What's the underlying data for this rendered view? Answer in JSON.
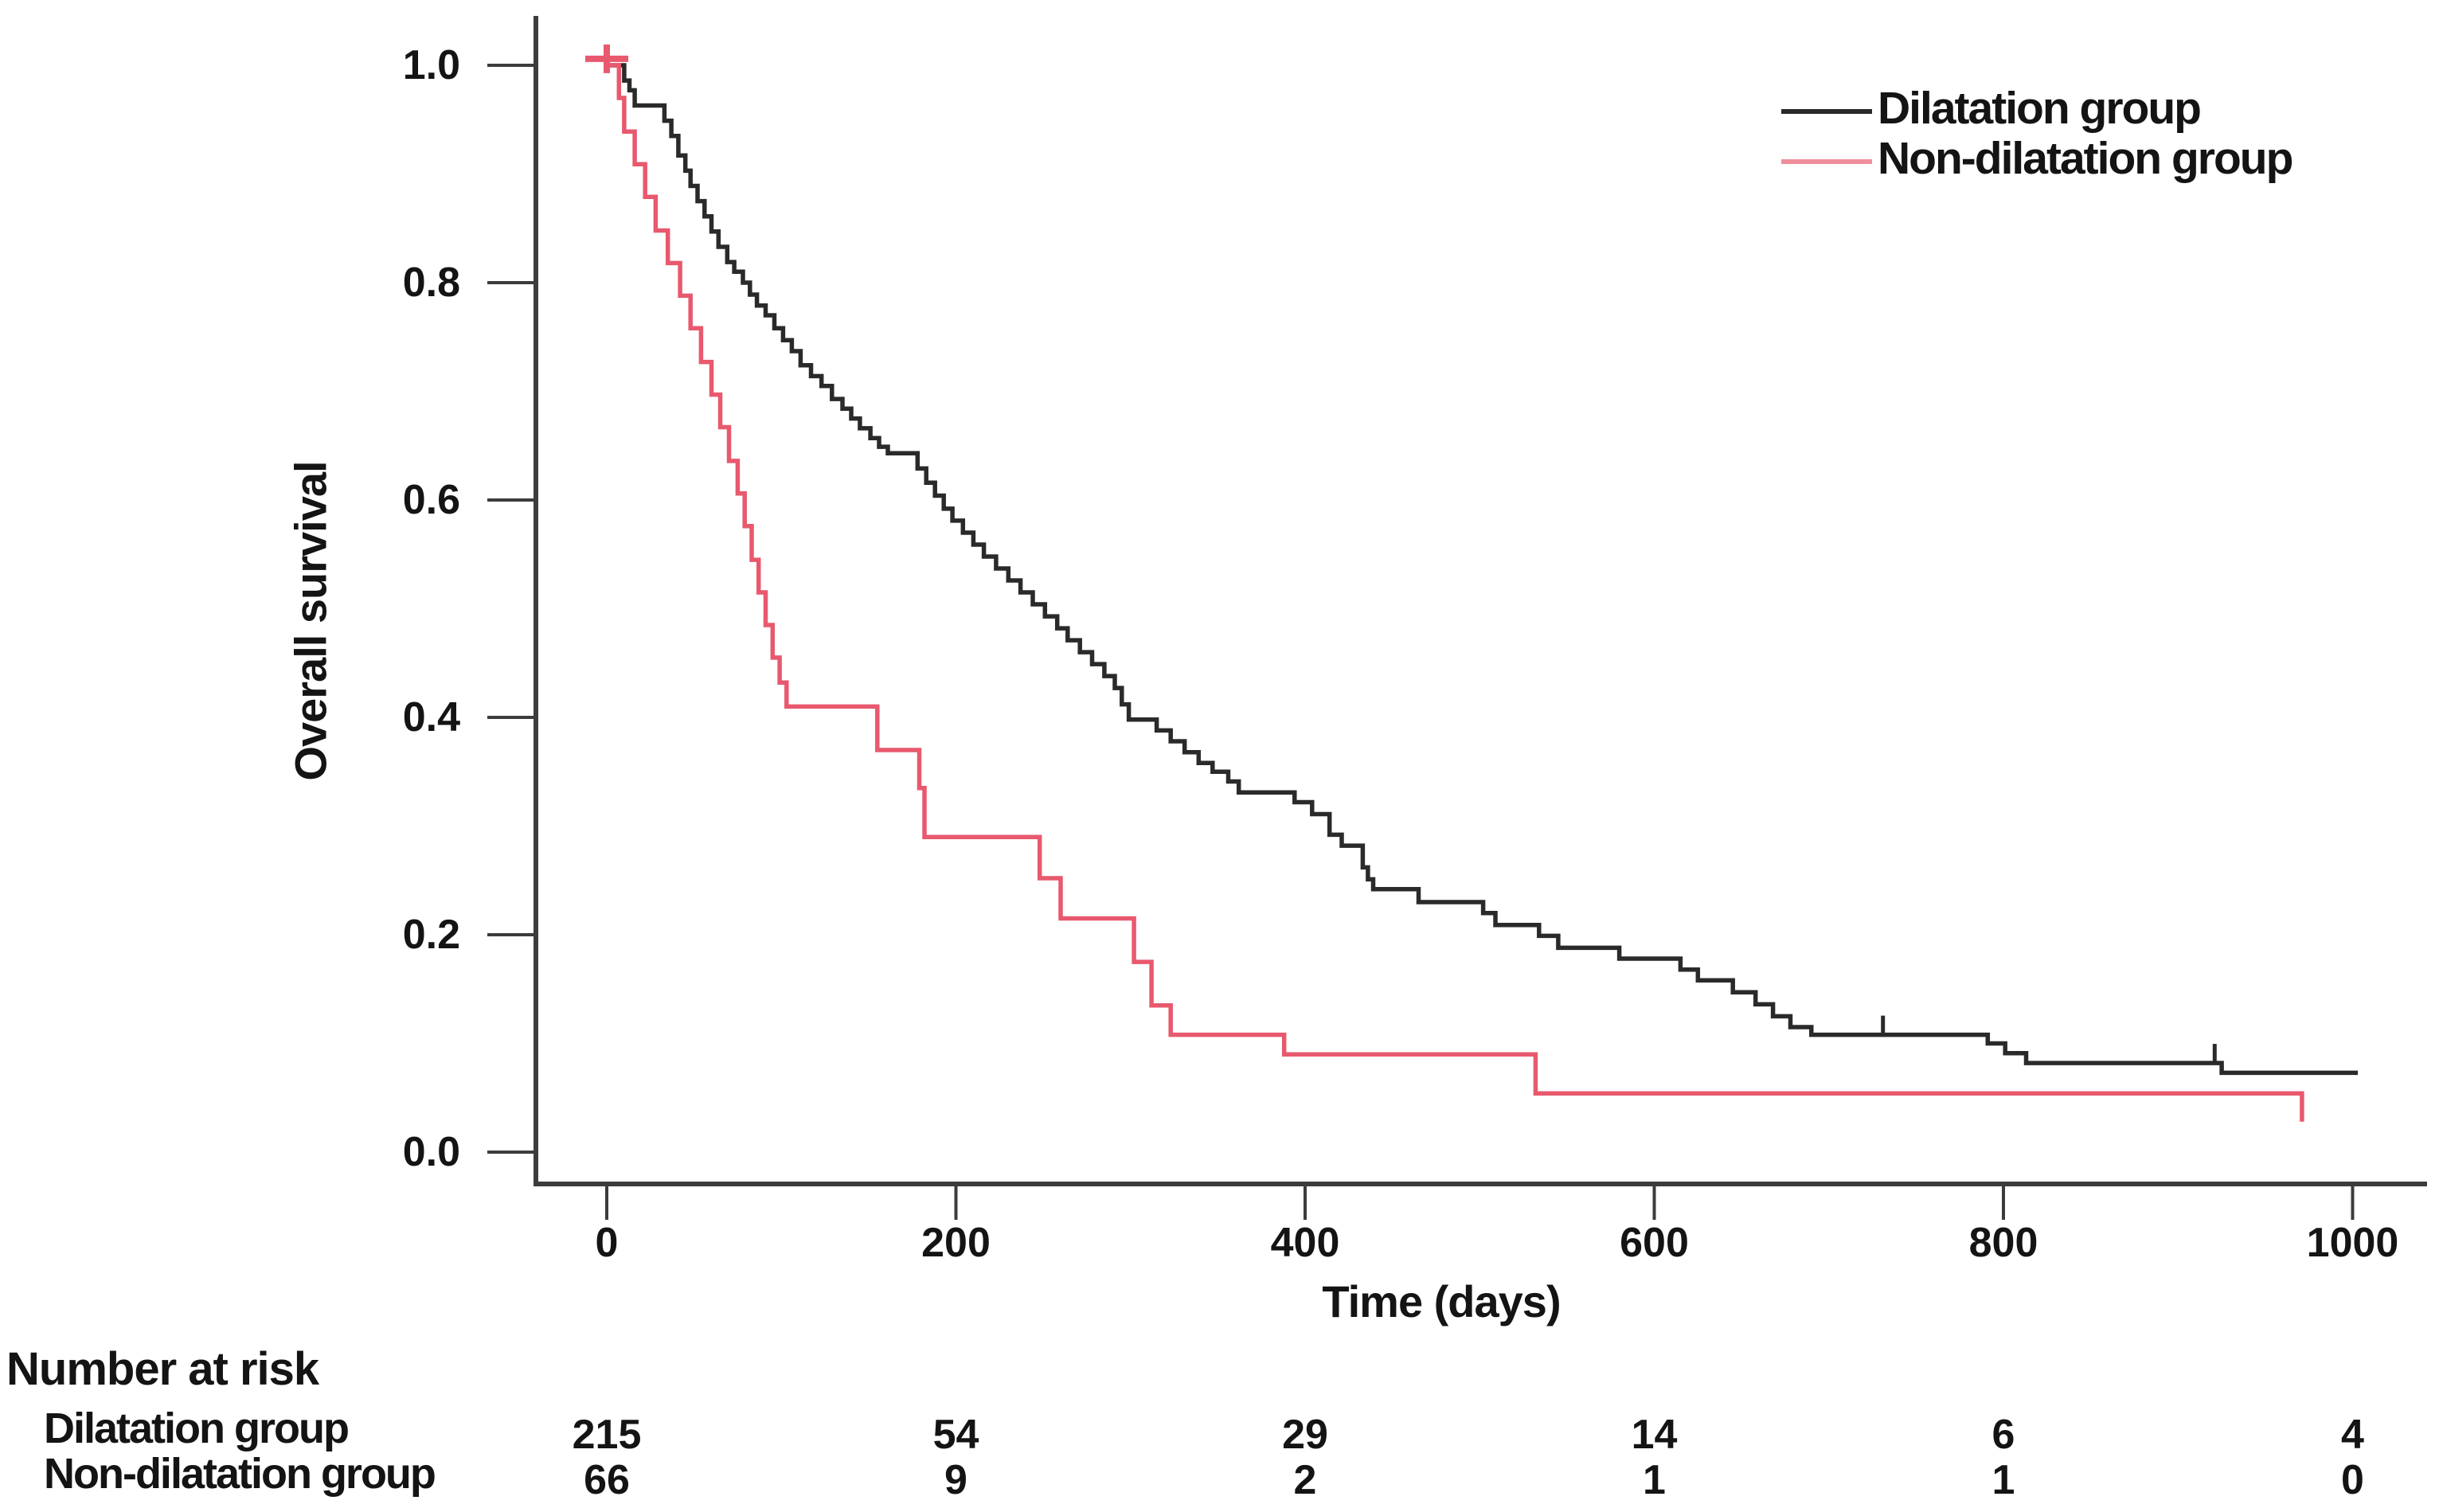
{
  "figure": {
    "background": "#ffffff",
    "axis_color": "#3c3c3c",
    "text_color": "#141414"
  },
  "legend": {
    "items": [
      {
        "label": "Dilatation group",
        "line_color": "#2a2a2a"
      },
      {
        "label": "Non-dilatation group",
        "line_color": "#f08f9c"
      }
    ]
  },
  "chart_data": {
    "type": "line",
    "subtype": "kaplan-meier-step",
    "title": "",
    "xlabel": "Time (days)",
    "ylabel": "Overall survival",
    "xlim": [
      0,
      1000
    ],
    "ylim": [
      0.0,
      1.0
    ],
    "x_ticks": [
      0,
      200,
      400,
      600,
      800,
      1000
    ],
    "y_ticks": [
      1.0,
      0.8,
      0.6,
      0.4,
      0.2,
      0.0
    ],
    "grid": false,
    "legend_position": "top-right",
    "series": [
      {
        "name": "Dilatation group",
        "color": "#2a2a2a",
        "end_t": 1003,
        "censor_marks": [
          [
            731,
            0.108
          ],
          [
            921,
            0.082
          ]
        ],
        "censor_style": "tick",
        "points": [
          [
            0,
            1.0
          ],
          [
            10,
            0.986
          ],
          [
            13,
            0.977
          ],
          [
            16,
            0.963
          ],
          [
            33,
            0.949
          ],
          [
            37,
            0.935
          ],
          [
            41,
            0.917
          ],
          [
            45,
            0.903
          ],
          [
            48,
            0.889
          ],
          [
            52,
            0.875
          ],
          [
            56,
            0.861
          ],
          [
            60,
            0.847
          ],
          [
            64,
            0.833
          ],
          [
            69,
            0.819
          ],
          [
            73,
            0.81
          ],
          [
            78,
            0.8
          ],
          [
            82,
            0.789
          ],
          [
            86,
            0.779
          ],
          [
            91,
            0.77
          ],
          [
            96,
            0.758
          ],
          [
            101,
            0.747
          ],
          [
            106,
            0.737
          ],
          [
            111,
            0.724
          ],
          [
            117,
            0.714
          ],
          [
            123,
            0.705
          ],
          [
            129,
            0.693
          ],
          [
            135,
            0.684
          ],
          [
            140,
            0.675
          ],
          [
            145,
            0.666
          ],
          [
            151,
            0.657
          ],
          [
            156,
            0.649
          ],
          [
            161,
            0.643
          ],
          [
            178,
            0.629
          ],
          [
            183,
            0.616
          ],
          [
            188,
            0.604
          ],
          [
            193,
            0.592
          ],
          [
            198,
            0.581
          ],
          [
            204,
            0.57
          ],
          [
            210,
            0.559
          ],
          [
            216,
            0.548
          ],
          [
            223,
            0.537
          ],
          [
            230,
            0.526
          ],
          [
            237,
            0.515
          ],
          [
            244,
            0.504
          ],
          [
            251,
            0.493
          ],
          [
            258,
            0.482
          ],
          [
            264,
            0.471
          ],
          [
            271,
            0.46
          ],
          [
            278,
            0.449
          ],
          [
            285,
            0.438
          ],
          [
            291,
            0.427
          ],
          [
            295,
            0.412
          ],
          [
            299,
            0.398
          ],
          [
            315,
            0.388
          ],
          [
            323,
            0.378
          ],
          [
            331,
            0.368
          ],
          [
            339,
            0.358
          ],
          [
            347,
            0.35
          ],
          [
            356,
            0.341
          ],
          [
            362,
            0.331
          ],
          [
            394,
            0.322
          ],
          [
            404,
            0.311
          ],
          [
            414,
            0.292
          ],
          [
            421,
            0.282
          ],
          [
            433,
            0.262
          ],
          [
            436,
            0.251
          ],
          [
            439,
            0.242
          ],
          [
            465,
            0.23
          ],
          [
            502,
            0.22
          ],
          [
            509,
            0.209
          ],
          [
            534,
            0.199
          ],
          [
            545,
            0.188
          ],
          [
            580,
            0.178
          ],
          [
            615,
            0.168
          ],
          [
            625,
            0.158
          ],
          [
            645,
            0.147
          ],
          [
            658,
            0.136
          ],
          [
            668,
            0.125
          ],
          [
            678,
            0.115
          ],
          [
            690,
            0.108
          ],
          [
            791,
            0.1
          ],
          [
            801,
            0.091
          ],
          [
            813,
            0.082
          ],
          [
            925,
            0.073
          ]
        ]
      },
      {
        "name": "Non-dilatation group",
        "color": "#e8596e",
        "end_t": 971,
        "censor_marks": [
          [
            0,
            1.003
          ]
        ],
        "censor_style": "plus",
        "points": [
          [
            0,
            1.0
          ],
          [
            7,
            0.97
          ],
          [
            10,
            0.939
          ],
          [
            16,
            0.909
          ],
          [
            22,
            0.879
          ],
          [
            28,
            0.848
          ],
          [
            35,
            0.818
          ],
          [
            42,
            0.788
          ],
          [
            48,
            0.758
          ],
          [
            54,
            0.727
          ],
          [
            60,
            0.697
          ],
          [
            65,
            0.667
          ],
          [
            70,
            0.636
          ],
          [
            75,
            0.606
          ],
          [
            79,
            0.576
          ],
          [
            83,
            0.545
          ],
          [
            87,
            0.515
          ],
          [
            91,
            0.485
          ],
          [
            95,
            0.455
          ],
          [
            99,
            0.432
          ],
          [
            103,
            0.41
          ],
          [
            155,
            0.37
          ],
          [
            179,
            0.335
          ],
          [
            182,
            0.29
          ],
          [
            248,
            0.252
          ],
          [
            260,
            0.215
          ],
          [
            302,
            0.175
          ],
          [
            312,
            0.135
          ],
          [
            323,
            0.108
          ],
          [
            388,
            0.09
          ],
          [
            532,
            0.054
          ],
          [
            971,
            0.028
          ]
        ]
      }
    ],
    "number_at_risk": {
      "header": "Number at risk",
      "times": [
        0,
        200,
        400,
        600,
        800,
        1000
      ],
      "rows": [
        {
          "label": "Dilatation group",
          "values": [
            "215",
            "54",
            "29",
            "14",
            "6",
            "4"
          ]
        },
        {
          "label": "Non-dilatation group",
          "values": [
            "66",
            "9",
            "2",
            "1",
            "1",
            "0"
          ]
        }
      ]
    }
  }
}
